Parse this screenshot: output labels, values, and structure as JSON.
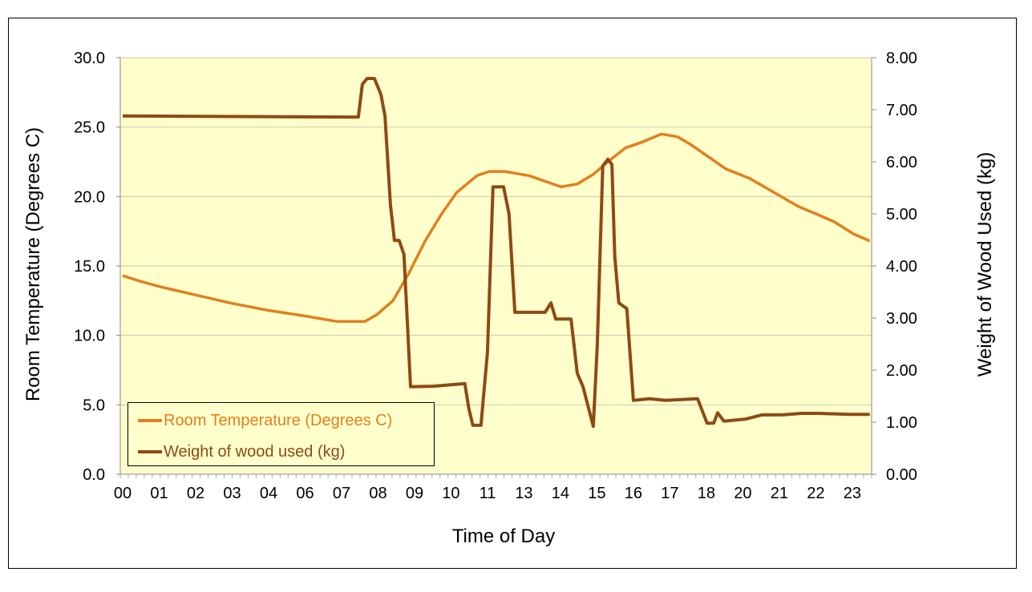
{
  "chart_data": {
    "type": "line",
    "title": "",
    "xlabel": "Time of Day",
    "ylabel": "Room Temperature (Degrees C)",
    "y2label": "Weight of Wood Used (kg)",
    "x_tick_labels": [
      "00",
      "01",
      "02",
      "03",
      "04",
      "06",
      "07",
      "08",
      "09",
      "10",
      "11",
      "13",
      "14",
      "15",
      "16",
      "17",
      "18",
      "20",
      "21",
      "22",
      "23"
    ],
    "x_units": "category position index (0 = '00' label, 20 = '23' label)",
    "xlim": [
      -0.066,
      20.53
    ],
    "ylim": [
      0,
      30
    ],
    "y_ticks": [
      "0.0",
      "5.0",
      "10.0",
      "15.0",
      "20.0",
      "25.0",
      "30.0"
    ],
    "y2lim": [
      0,
      8
    ],
    "y2_ticks": [
      "0.00",
      "1.00",
      "2.00",
      "3.00",
      "4.00",
      "5.00",
      "6.00",
      "7.00",
      "8.00"
    ],
    "grid": true,
    "legend_position": "bottom-left",
    "background": "#FFFFCC",
    "series": [
      {
        "name": "Room Temperature (Degrees C)",
        "axis": "left",
        "color": "#E0801F",
        "x": [
          0,
          0.48,
          1.03,
          2.02,
          3.01,
          4.0,
          4.99,
          5.87,
          6.64,
          6.97,
          7.41,
          7.85,
          8.29,
          8.73,
          9.16,
          9.71,
          10.04,
          10.48,
          11.14,
          11.69,
          12.02,
          12.46,
          12.9,
          13.34,
          13.78,
          14.22,
          14.77,
          15.21,
          15.54,
          16.2,
          16.53,
          17.19,
          17.85,
          18.51,
          19.05,
          19.49,
          20.04,
          20.48
        ],
        "values": [
          14.3,
          13.9,
          13.5,
          12.9,
          12.3,
          11.8,
          11.4,
          11.0,
          11.0,
          11.5,
          12.5,
          14.5,
          16.8,
          18.7,
          20.3,
          21.5,
          21.8,
          21.8,
          21.5,
          21.0,
          20.7,
          20.9,
          21.6,
          22.6,
          23.5,
          23.9,
          24.5,
          24.3,
          23.8,
          22.6,
          22.0,
          21.3,
          20.3,
          19.3,
          18.7,
          18.2,
          17.3,
          16.8
        ]
      },
      {
        "name": "Weight of wood used (kg)",
        "axis": "right",
        "color": "#8E4A14",
        "x": [
          0,
          6.31,
          6.46,
          6.57,
          6.7,
          6.9,
          7.08,
          7.19,
          7.34,
          7.45,
          7.58,
          7.71,
          7.89,
          8.51,
          9.38,
          9.49,
          9.6,
          9.82,
          10.0,
          10.15,
          10.44,
          10.59,
          10.75,
          11.58,
          11.74,
          11.87,
          12.29,
          12.46,
          12.62,
          12.9,
          13.01,
          13.16,
          13.3,
          13.41,
          13.49,
          13.6,
          13.82,
          14.0,
          14.44,
          14.88,
          15.76,
          16.02,
          16.2,
          16.31,
          16.48,
          17.08,
          17.52,
          18.07,
          18.62,
          19.05,
          19.93,
          20.48
        ],
        "values": [
          6.88,
          6.86,
          6.86,
          7.49,
          7.6,
          7.6,
          7.29,
          6.88,
          5.18,
          4.49,
          4.49,
          4.22,
          1.68,
          1.69,
          1.74,
          1.26,
          0.94,
          0.94,
          2.34,
          5.52,
          5.52,
          5.0,
          3.11,
          3.11,
          3.29,
          2.98,
          2.98,
          1.94,
          1.68,
          0.92,
          2.49,
          5.92,
          6.05,
          5.95,
          4.18,
          3.29,
          3.18,
          1.42,
          1.45,
          1.42,
          1.45,
          0.98,
          0.98,
          1.18,
          1.02,
          1.06,
          1.14,
          1.14,
          1.17,
          1.17,
          1.15,
          1.15
        ]
      }
    ]
  }
}
